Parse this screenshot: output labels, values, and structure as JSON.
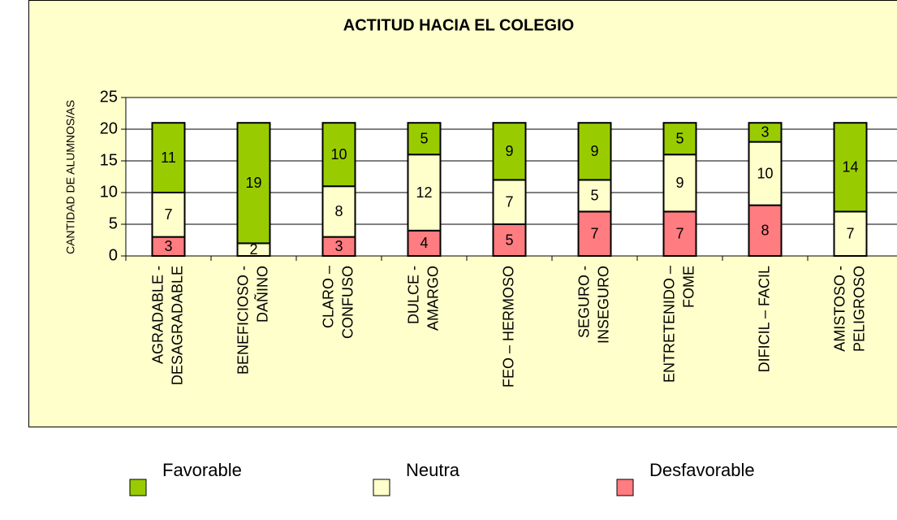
{
  "chart_data": {
    "type": "stacked_bar",
    "title": "ACTITUD HACIA EL COLEGIO",
    "y_label": "CANTIDAD DE ALUMNOS/AS",
    "categories": [
      [
        "AGRADABLE -",
        "DESAGRADABLE"
      ],
      [
        "BENEFICIOSO -",
        "DAÑINO"
      ],
      [
        "CLARO –",
        "CONFUSO"
      ],
      [
        "DULCE -",
        "AMARGO"
      ],
      [
        "FEO – HERMOSO"
      ],
      [
        "SEGURO -",
        "INSEGURO"
      ],
      [
        "ENTRETENIDO –",
        "FOME"
      ],
      [
        "DIFICIL – FACIL"
      ],
      [
        "AMISTOSO -",
        "PELIGROSO"
      ]
    ],
    "series": [
      {
        "name": "Favorable",
        "color": "#99cc00",
        "values": [
          11,
          19,
          10,
          5,
          9,
          9,
          5,
          3,
          14
        ]
      },
      {
        "name": "Neutra",
        "color": "#ffffcc",
        "values": [
          7,
          2,
          8,
          12,
          7,
          5,
          9,
          10,
          7
        ]
      },
      {
        "name": "Desfavorable",
        "color": "#ff7c80",
        "values": [
          3,
          0,
          3,
          4,
          5,
          7,
          7,
          8,
          0
        ]
      }
    ],
    "ylim": [
      0,
      25
    ],
    "yticks": [
      0,
      5,
      10,
      15,
      20,
      25
    ],
    "grid": true
  }
}
